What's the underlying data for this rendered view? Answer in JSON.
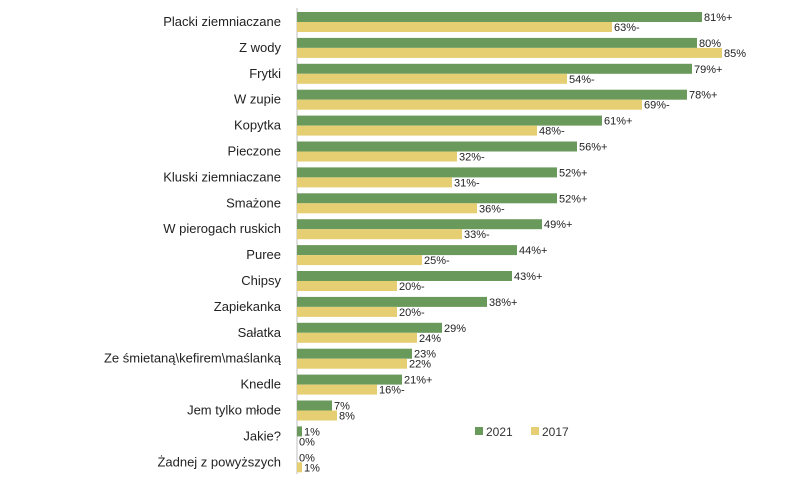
{
  "chart_data": {
    "type": "bar",
    "orientation": "horizontal",
    "categories": [
      "Placki ziemniaczane",
      "Z wody",
      "Frytki",
      "W zupie",
      "Kopytka",
      "Pieczone",
      "Kluski ziemniaczane",
      "Smażone",
      "W pierogach ruskich",
      "Puree",
      "Chipsy",
      "Zapiekanka",
      "Sałatka",
      "Ze śmietaną\\kefirem\\maślanką",
      "Knedle",
      "Jem tylko młode",
      "Jakie?",
      "Żadnej z powyższych"
    ],
    "series": [
      {
        "name": "2021",
        "color": "#6a9a5b",
        "values": [
          81,
          80,
          79,
          78,
          61,
          56,
          52,
          52,
          49,
          44,
          43,
          38,
          29,
          23,
          21,
          7,
          1,
          0
        ],
        "labels": [
          "81%+",
          "80%",
          "79%+",
          "78%+",
          "61%+",
          "56%+",
          "52%+",
          "52%+",
          "49%+",
          "44%+",
          "43%+",
          "38%+",
          "29%",
          "23%",
          "21%+",
          "7%",
          "1%",
          "0%"
        ]
      },
      {
        "name": "2017",
        "color": "#e6cf73",
        "values": [
          63,
          85,
          54,
          69,
          48,
          32,
          31,
          36,
          33,
          25,
          20,
          20,
          24,
          22,
          16,
          8,
          0,
          1
        ],
        "labels": [
          "63%-",
          "85%",
          "54%-",
          "69%-",
          "48%-",
          "32%-",
          "31%-",
          "36%-",
          "33%-",
          "25%-",
          "20%-",
          "20%-",
          "24%",
          "22%",
          "16%-",
          "8%",
          "0%",
          "1%"
        ]
      }
    ],
    "xlim": [
      0,
      100
    ],
    "grid": false,
    "legend": "bottom-right"
  }
}
